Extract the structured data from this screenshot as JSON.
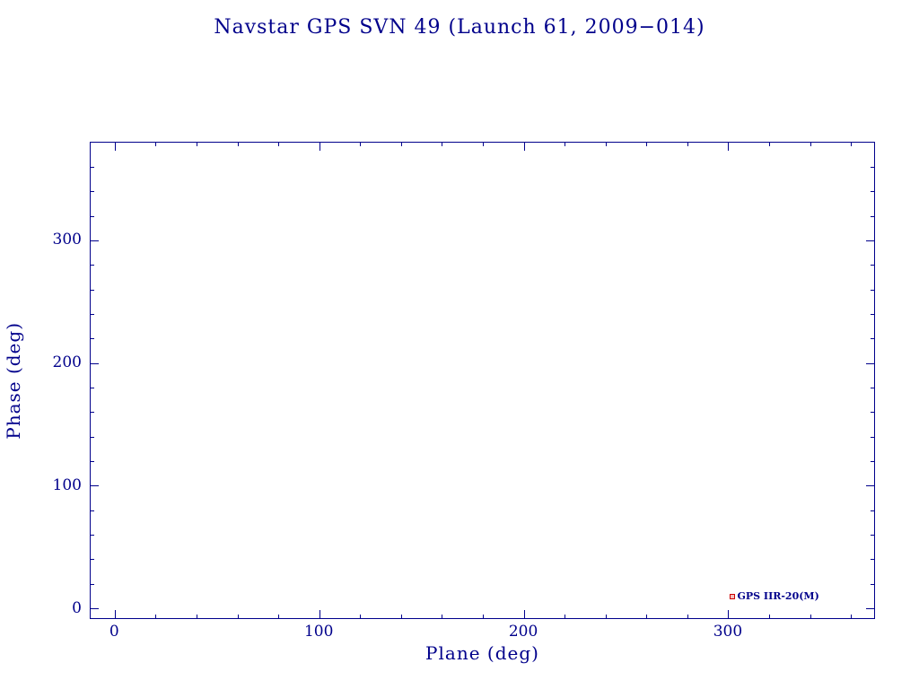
{
  "chart_data": {
    "type": "scatter",
    "title": "Navstar GPS SVN 49 (Launch 61, 2009−014)",
    "xlabel": "Plane (deg)",
    "ylabel": "Phase (deg)",
    "xlim": [
      -12,
      372
    ],
    "ylim": [
      -9,
      380
    ],
    "xticks": [
      0,
      100,
      200,
      300
    ],
    "yticks": [
      0,
      100,
      200,
      300
    ],
    "minor_tick_step": 20,
    "grid": false,
    "legend": "none",
    "points": [
      {
        "x": 302,
        "y": 10,
        "label": "GPS IIR-20(M)",
        "marker": "open-square",
        "color": "#cc0000"
      }
    ]
  },
  "colors": {
    "axis": "#00008b",
    "text": "#00008b",
    "marker": "#cc0000",
    "background": "#ffffff"
  }
}
